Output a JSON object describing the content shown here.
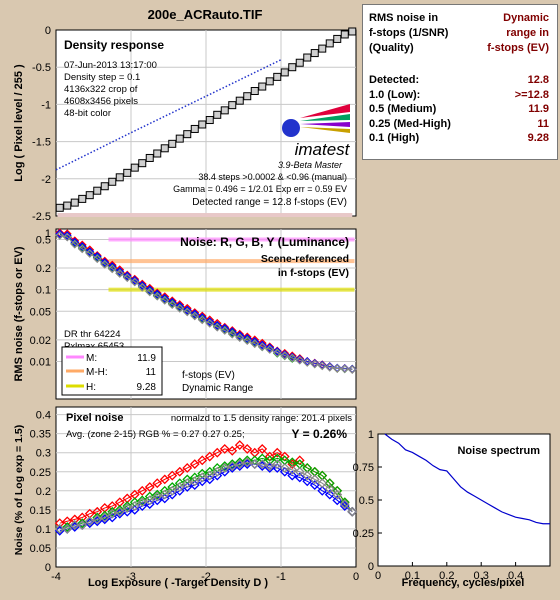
{
  "window_title": "200e_ACRauto.TIF",
  "colors": {
    "background": "#d9c8b0",
    "plot": "#ffffff",
    "title": "#7a0080",
    "accent_red": "#800000"
  },
  "table": {
    "header_left": [
      "RMS noise in",
      "f-stops (1/SNR)",
      "(Quality)"
    ],
    "header_right": [
      "Dynamic",
      "range in",
      "f-stops (EV)"
    ],
    "rows": [
      {
        "label": "Detected:",
        "value": "12.8"
      },
      {
        "label": "1.0  (Low):",
        "value": ">=12.8"
      },
      {
        "label": "0.5  (Medium)",
        "value": "11.9"
      },
      {
        "label": "0.25 (Med-High)",
        "value": "11"
      },
      {
        "label": "0.1  (High)",
        "value": "9.28"
      }
    ]
  },
  "chart_data": [
    {
      "type": "line",
      "title": "Density response",
      "ylabel": "Log ( Pixel level / 255 )",
      "xlim": [
        -4,
        0
      ],
      "ylim": [
        -2.5,
        0
      ],
      "yticks": [
        0,
        -0.5,
        -1,
        -1.5,
        -2,
        -2.5
      ],
      "ytick_labels": [
        "0",
        "-0.5",
        "-1",
        "-1.5",
        "-2",
        "-2.5"
      ],
      "info": [
        "07-Jun-2013 13:17:00",
        "Density step = 0.1",
        "4136x322 crop of",
        "4608x3456 pixels",
        "48-bit color"
      ],
      "logo": "imatest",
      "version": "3.9-Beta  Master",
      "stats": [
        "38.4 steps >0.0002 & <0.96 (manual)",
        "Gamma = 0.496 = 1/2.01  Exp err = 0.59 EV"
      ],
      "detected_range": "Detected range = 12.8 f-stops (EV)",
      "series": [
        {
          "x": [
            -3.95,
            -3.85,
            -3.75,
            -3.65,
            -3.55,
            -3.45,
            -3.35,
            -3.25,
            -3.15,
            -3.05,
            -2.95,
            -2.85,
            -2.75,
            -2.65,
            -2.55,
            -2.45,
            -2.35,
            -2.25,
            -2.15,
            -2.05,
            -1.95,
            -1.85,
            -1.75,
            -1.65,
            -1.55,
            -1.45,
            -1.35,
            -1.25,
            -1.15,
            -1.05,
            -0.95,
            -0.85,
            -0.75,
            -0.65,
            -0.55,
            -0.45,
            -0.35,
            -0.25,
            -0.15,
            -0.05
          ],
          "y": [
            -2.39,
            -2.36,
            -2.32,
            -2.27,
            -2.22,
            -2.16,
            -2.1,
            -2.04,
            -1.98,
            -1.92,
            -1.85,
            -1.79,
            -1.72,
            -1.66,
            -1.59,
            -1.53,
            -1.46,
            -1.4,
            -1.33,
            -1.27,
            -1.21,
            -1.14,
            -1.08,
            -1.01,
            -0.95,
            -0.89,
            -0.82,
            -0.76,
            -0.69,
            -0.63,
            -0.57,
            -0.5,
            -0.44,
            -0.37,
            -0.31,
            -0.25,
            -0.18,
            -0.12,
            -0.06,
            -0.02
          ]
        },
        {
          "x": [
            -4.0,
            -3.0,
            -2.0,
            -1.0
          ],
          "y": [
            -1.88,
            -1.38,
            -0.89,
            -0.4
          ]
        }
      ]
    },
    {
      "type": "line",
      "title": "Noise: R, G, B, Y (Luminance)",
      "ylabel": "RMS noise (f-stops or EV)",
      "y_scale": "log",
      "xlim": [
        -4,
        0
      ],
      "ylim": [
        0.003,
        0.7
      ],
      "ytick_labels": [
        "1",
        "0.5",
        "0.2",
        "0.1",
        "0.05",
        "0.02",
        "0.01"
      ],
      "yticks": [
        1,
        0.5,
        0.2,
        0.1,
        0.05,
        0.02,
        0.01
      ],
      "annotations": [
        "Scene-referenced",
        "in f-stops (EV)",
        "DR thr 64224",
        "Pxlmax 65453",
        "f-stops (EV)",
        "Dynamic Range"
      ],
      "legend": [
        {
          "label": "M:",
          "value": "11.9",
          "color": "#ff88ff"
        },
        {
          "label": "M-H:",
          "value": "11",
          "color": "#ffaa66"
        },
        {
          "label": "H:",
          "value": "9.28",
          "color": "#dddd00"
        }
      ],
      "thresholds": [
        0.5,
        0.25,
        0.1
      ],
      "x": [
        -3.95,
        -3.85,
        -3.75,
        -3.65,
        -3.55,
        -3.45,
        -3.35,
        -3.25,
        -3.15,
        -3.05,
        -2.95,
        -2.85,
        -2.75,
        -2.65,
        -2.55,
        -2.45,
        -2.35,
        -2.25,
        -2.15,
        -2.05,
        -1.95,
        -1.85,
        -1.75,
        -1.65,
        -1.55,
        -1.45,
        -1.35,
        -1.25,
        -1.15,
        -1.05,
        -0.95,
        -0.85,
        -0.75,
        -0.65,
        -0.55,
        -0.45,
        -0.35,
        -0.25,
        -0.15,
        -0.05
      ],
      "series": [
        {
          "color": "#ff0000",
          "values": [
            0.62,
            0.6,
            0.48,
            0.42,
            0.36,
            0.3,
            0.25,
            0.22,
            0.19,
            0.16,
            0.14,
            0.12,
            0.105,
            0.09,
            0.08,
            0.07,
            0.062,
            0.055,
            0.048,
            0.043,
            0.038,
            0.034,
            0.03,
            0.027,
            0.024,
            0.022,
            0.02,
            0.018,
            0.016,
            0.014,
            0.013,
            0.012,
            0.011,
            0.01,
            0.0095,
            0.009,
            0.0085,
            0.008,
            0.008,
            0.0078
          ]
        },
        {
          "color": "#00aa00",
          "values": [
            0.58,
            0.55,
            0.44,
            0.38,
            0.33,
            0.28,
            0.23,
            0.2,
            0.17,
            0.15,
            0.13,
            0.11,
            0.095,
            0.083,
            0.073,
            0.064,
            0.057,
            0.05,
            0.044,
            0.039,
            0.035,
            0.031,
            0.028,
            0.025,
            0.022,
            0.02,
            0.018,
            0.016,
            0.015,
            0.013,
            0.012,
            0.011,
            0.0105,
            0.0098,
            0.0093,
            0.0088,
            0.0084,
            0.008,
            0.0079,
            0.0078
          ]
        },
        {
          "color": "#0000ff",
          "values": [
            0.6,
            0.57,
            0.46,
            0.4,
            0.34,
            0.29,
            0.24,
            0.21,
            0.18,
            0.155,
            0.135,
            0.115,
            0.1,
            0.087,
            0.076,
            0.067,
            0.059,
            0.052,
            0.046,
            0.041,
            0.036,
            0.032,
            0.029,
            0.026,
            0.023,
            0.021,
            0.019,
            0.017,
            0.0155,
            0.0138,
            0.0125,
            0.0115,
            0.0107,
            0.01,
            0.0094,
            0.0089,
            0.0085,
            0.0081,
            0.008,
            0.0078
          ]
        },
        {
          "color": "#888888",
          "values": [
            0.57,
            0.54,
            0.43,
            0.37,
            0.32,
            0.27,
            0.225,
            0.195,
            0.168,
            0.147,
            0.128,
            0.108,
            0.093,
            0.081,
            0.071,
            0.062,
            0.055,
            0.049,
            0.043,
            0.038,
            0.034,
            0.03,
            0.027,
            0.024,
            0.0215,
            0.0195,
            0.0177,
            0.016,
            0.0147,
            0.0132,
            0.0121,
            0.0112,
            0.0104,
            0.0097,
            0.0092,
            0.0087,
            0.0083,
            0.008,
            0.0079,
            0.0077
          ]
        }
      ]
    },
    {
      "type": "line",
      "title": "Pixel noise",
      "xlabel": "Log Exposure ( -Target Density D )",
      "ylabel": "Noise (% of Log exp = 1.5)",
      "xlim": [
        -4,
        0
      ],
      "ylim": [
        0,
        0.42
      ],
      "xticks": [
        -4,
        -3,
        -2,
        -1,
        0
      ],
      "xtick_labels": [
        "-4",
        "-3",
        "-2",
        "-1",
        "0"
      ],
      "yticks": [
        0,
        0.05,
        0.1,
        0.15,
        0.2,
        0.25,
        0.3,
        0.35,
        0.4
      ],
      "ytick_labels": [
        "0",
        "0.05",
        "0.1",
        "0.15",
        "0.2",
        "0.25",
        "0.3",
        "0.35",
        "0.4"
      ],
      "subtitle": "normalzd to 1.5 density range: 201.4 pixels",
      "rgb_line": "Avg. (zone 2-15) RGB % = 0.27  0.27  0.25;",
      "y_text": "Y = 0.26%",
      "x": [
        -3.95,
        -3.85,
        -3.75,
        -3.65,
        -3.55,
        -3.45,
        -3.35,
        -3.25,
        -3.15,
        -3.05,
        -2.95,
        -2.85,
        -2.75,
        -2.65,
        -2.55,
        -2.45,
        -2.35,
        -2.25,
        -2.15,
        -2.05,
        -1.95,
        -1.85,
        -1.75,
        -1.65,
        -1.55,
        -1.45,
        -1.35,
        -1.25,
        -1.15,
        -1.05,
        -0.95,
        -0.85,
        -0.75,
        -0.65,
        -0.55,
        -0.45,
        -0.35,
        -0.25,
        -0.15,
        -0.05
      ],
      "series": [
        {
          "color": "#ff0000",
          "values": [
            0.115,
            0.12,
            0.125,
            0.13,
            0.14,
            0.145,
            0.155,
            0.16,
            0.17,
            0.18,
            0.19,
            0.2,
            0.21,
            0.22,
            0.23,
            0.24,
            0.25,
            0.26,
            0.27,
            0.28,
            0.29,
            0.3,
            0.31,
            0.305,
            0.32,
            0.31,
            0.3,
            0.31,
            0.29,
            0.3,
            0.29,
            0.27,
            0.28,
            0.26,
            0.25,
            0.24,
            0.22,
            0.2,
            0.17,
            0.145
          ]
        },
        {
          "color": "#00aa00",
          "values": [
            0.1,
            0.105,
            0.11,
            0.115,
            0.12,
            0.13,
            0.135,
            0.145,
            0.15,
            0.16,
            0.17,
            0.175,
            0.185,
            0.19,
            0.2,
            0.21,
            0.22,
            0.23,
            0.235,
            0.245,
            0.25,
            0.26,
            0.265,
            0.27,
            0.275,
            0.28,
            0.28,
            0.285,
            0.28,
            0.285,
            0.28,
            0.275,
            0.27,
            0.26,
            0.25,
            0.24,
            0.22,
            0.2,
            0.17,
            0.145
          ]
        },
        {
          "color": "#0000ff",
          "values": [
            0.095,
            0.1,
            0.105,
            0.11,
            0.115,
            0.12,
            0.125,
            0.13,
            0.14,
            0.145,
            0.15,
            0.16,
            0.165,
            0.175,
            0.18,
            0.19,
            0.2,
            0.21,
            0.215,
            0.225,
            0.23,
            0.24,
            0.25,
            0.26,
            0.265,
            0.27,
            0.27,
            0.265,
            0.26,
            0.26,
            0.25,
            0.24,
            0.235,
            0.225,
            0.215,
            0.2,
            0.19,
            0.175,
            0.16,
            0.145
          ]
        },
        {
          "color": "#888888",
          "values": [
            0.1,
            0.1,
            0.11,
            0.11,
            0.12,
            0.125,
            0.13,
            0.14,
            0.145,
            0.155,
            0.16,
            0.17,
            0.175,
            0.185,
            0.19,
            0.2,
            0.21,
            0.22,
            0.225,
            0.235,
            0.24,
            0.25,
            0.26,
            0.265,
            0.27,
            0.275,
            0.27,
            0.27,
            0.265,
            0.27,
            0.26,
            0.255,
            0.25,
            0.24,
            0.23,
            0.22,
            0.205,
            0.19,
            0.165,
            0.145
          ]
        }
      ]
    },
    {
      "type": "line",
      "title": "Noise spectrum",
      "xlabel": "Frequency, cycles/pixel",
      "xlim": [
        0,
        0.5
      ],
      "ylim": [
        0,
        1
      ],
      "xticks": [
        0,
        0.1,
        0.2,
        0.3,
        0.4
      ],
      "xtick_labels": [
        "0",
        "0.1",
        "0.2",
        "0.3",
        "0.4"
      ],
      "yticks": [
        0,
        0.25,
        0.5,
        0.75,
        1
      ],
      "ytick_labels": [
        "0",
        "0.25",
        "0.5",
        "0.75",
        "1"
      ],
      "series": [
        {
          "color": "#0000cc",
          "x": [
            0.02,
            0.04,
            0.06,
            0.08,
            0.1,
            0.12,
            0.14,
            0.16,
            0.18,
            0.2,
            0.22,
            0.24,
            0.26,
            0.28,
            0.3,
            0.32,
            0.34,
            0.36,
            0.38,
            0.4,
            0.42,
            0.44,
            0.46,
            0.48,
            0.5
          ],
          "values": [
            1.0,
            0.96,
            0.93,
            0.88,
            0.86,
            0.83,
            0.8,
            0.76,
            0.73,
            0.72,
            0.66,
            0.6,
            0.56,
            0.53,
            0.5,
            0.47,
            0.44,
            0.41,
            0.39,
            0.37,
            0.36,
            0.35,
            0.33,
            0.32,
            0.32
          ]
        }
      ]
    }
  ]
}
